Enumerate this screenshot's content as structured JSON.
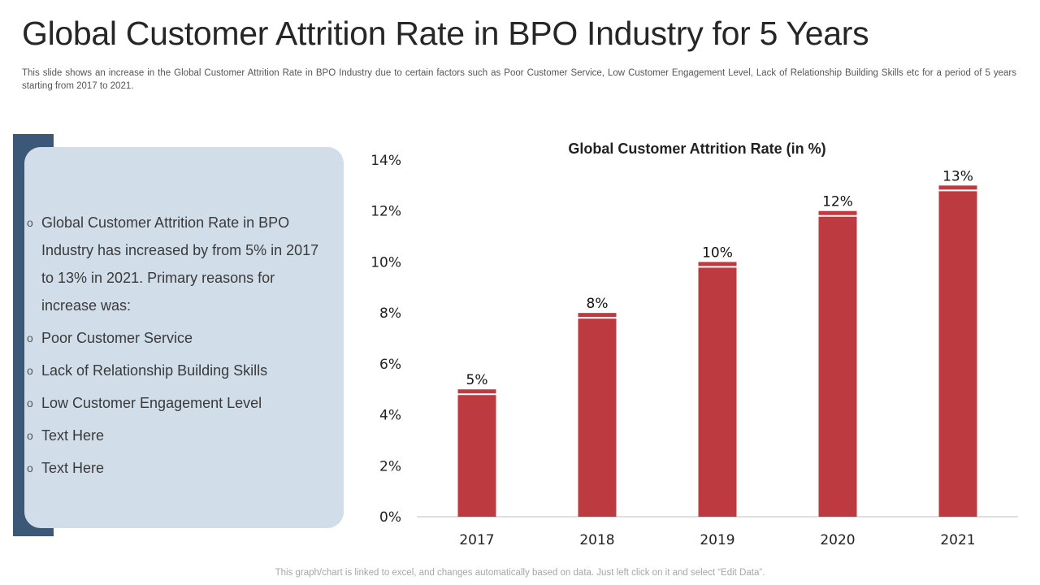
{
  "page": {
    "title": "Global Customer Attrition Rate in BPO Industry for 5 Years",
    "subtitle": "This slide shows an increase in the Global Customer Attrition Rate in BPO Industry due to certain factors such as Poor Customer Service, Low Customer Engagement Level, Lack of Relationship Building Skills etc for a period of 5 years starting from 2017 to 2021.",
    "footer": "This graph/chart is linked to excel, and changes automatically based on data. Just left click on it and select “Edit Data”."
  },
  "panel": {
    "bullet_marker": "o",
    "bullets": [
      "Global Customer Attrition Rate in BPO Industry has increased by from 5% in 2017 to 13% in 2021. Primary reasons for increase was:",
      "Poor Customer Service",
      "Lack of Relationship Building Skills",
      "Low Customer Engagement Level",
      "Text Here",
      "Text Here"
    ]
  },
  "colors": {
    "bar": "#be3a41",
    "accent_bar": "#3b5878",
    "panel_bg": "#d1dde9",
    "axis": "#bfbfbf"
  },
  "chart_data": {
    "type": "bar",
    "title": "Global Customer Attrition Rate (in %)",
    "categories": [
      "2017",
      "2018",
      "2019",
      "2020",
      "2021"
    ],
    "values": [
      5,
      8,
      10,
      12,
      13
    ],
    "data_labels": [
      "5%",
      "8%",
      "10%",
      "12%",
      "13%"
    ],
    "ylim": [
      0,
      14
    ],
    "yticks": [
      0,
      2,
      4,
      6,
      8,
      10,
      12,
      14
    ],
    "ytick_labels": [
      "0%",
      "2%",
      "4%",
      "6%",
      "8%",
      "10%",
      "12%",
      "14%"
    ],
    "xlabel": "",
    "ylabel": "",
    "grid": false,
    "legend": false
  }
}
